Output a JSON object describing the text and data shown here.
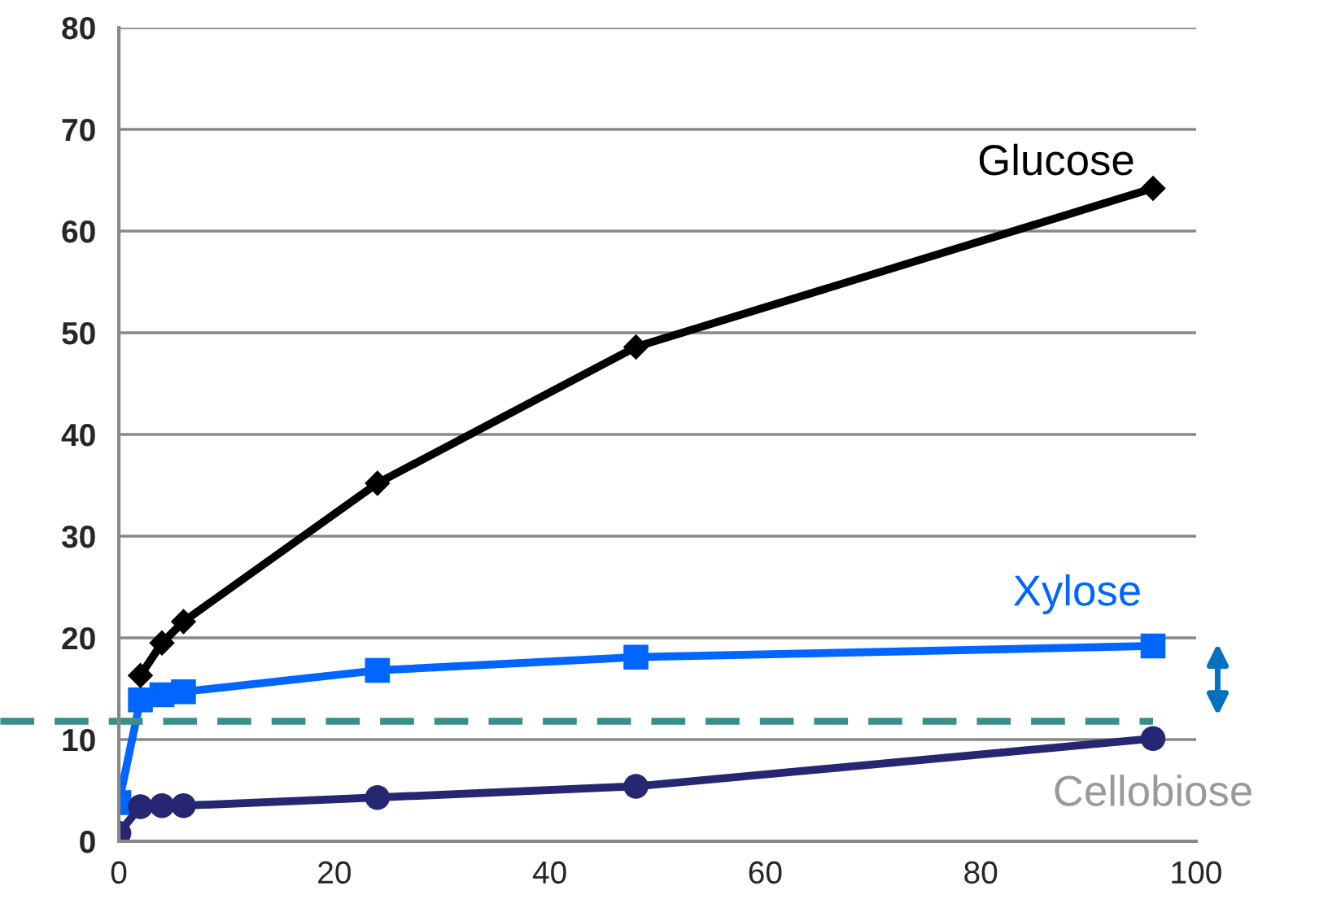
{
  "chart_data": {
    "type": "line",
    "x": [
      0,
      2,
      4,
      6,
      24,
      48,
      96
    ],
    "series": [
      {
        "name": "Glucose",
        "color": "#000000",
        "marker": "diamond",
        "x": [
          2,
          4,
          6,
          24,
          48,
          96
        ],
        "values": [
          16.3,
          19.5,
          21.6,
          35.2,
          48.6,
          64.2
        ]
      },
      {
        "name": "Xylose",
        "color": "#0066ff",
        "marker": "square",
        "values": [
          3.8,
          13.9,
          14.4,
          14.7,
          16.8,
          18.1,
          19.2
        ]
      },
      {
        "name": "Cellobiose",
        "color": "#262673",
        "marker": "circle",
        "values": [
          0.8,
          3.4,
          3.5,
          3.5,
          4.3,
          5.4,
          10.1
        ]
      }
    ],
    "xlim": [
      0,
      100
    ],
    "xticks": [
      0,
      20,
      40,
      60,
      80,
      100
    ],
    "ylim": [
      0,
      80
    ],
    "yticks": [
      0,
      10,
      20,
      30,
      40,
      50,
      60,
      70,
      80
    ],
    "grid": "y",
    "line_style": "solid",
    "ref_lines": [
      {
        "axis": "y",
        "value": 11.8,
        "color": "#3a8f8a",
        "line_style": "dashed"
      }
    ]
  }
}
